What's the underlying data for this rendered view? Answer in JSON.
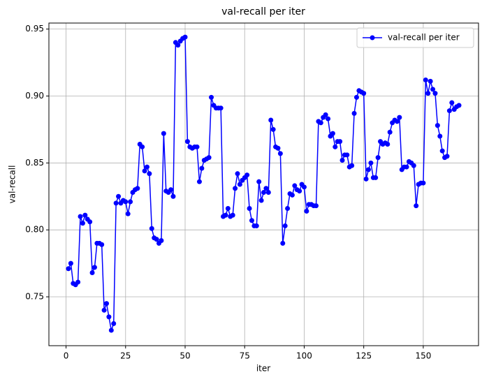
{
  "chart_data": {
    "type": "line",
    "title": "val-recall per iter",
    "x_label": "iter",
    "y_label": "val-recall",
    "x": [
      1,
      2,
      3,
      4,
      5,
      6,
      7,
      8,
      9,
      10,
      11,
      12,
      13,
      14,
      15,
      16,
      17,
      18,
      19,
      20,
      21,
      22,
      23,
      24,
      25,
      26,
      27,
      28,
      29,
      30,
      31,
      32,
      33,
      34,
      35,
      36,
      37,
      38,
      39,
      40,
      41,
      42,
      43,
      44,
      45,
      46,
      47,
      48,
      49,
      50,
      51,
      52,
      53,
      54,
      55,
      56,
      57,
      58,
      59,
      60,
      61,
      62,
      63,
      64,
      65,
      66,
      67,
      68,
      69,
      70,
      71,
      72,
      73,
      74,
      75,
      76,
      77,
      78,
      79,
      80,
      81,
      82,
      83,
      84,
      85,
      86,
      87,
      88,
      89,
      90,
      91,
      92,
      93,
      94,
      95,
      96,
      97,
      98,
      99,
      100,
      101,
      102,
      103,
      104,
      105,
      106,
      107,
      108,
      109,
      110,
      111,
      112,
      113,
      114,
      115,
      116,
      117,
      118,
      119,
      120,
      121,
      122,
      123,
      124,
      125,
      126,
      127,
      128,
      129,
      130,
      131,
      132,
      133,
      134,
      135,
      136,
      137,
      138,
      139,
      140,
      141,
      142,
      143,
      144,
      145,
      146,
      147,
      148,
      149,
      150,
      151,
      152,
      153,
      154,
      155,
      156,
      157,
      158,
      159,
      160,
      161,
      162,
      163,
      164,
      165
    ],
    "series": [
      {
        "name": "val-recall per iter",
        "color": "#0000ff",
        "marker": "circle",
        "values": [
          0.771,
          0.775,
          0.76,
          0.759,
          0.761,
          0.81,
          0.805,
          0.811,
          0.808,
          0.806,
          0.768,
          0.772,
          0.79,
          0.79,
          0.789,
          0.74,
          0.745,
          0.735,
          0.725,
          0.73,
          0.82,
          0.825,
          0.82,
          0.822,
          0.821,
          0.812,
          0.821,
          0.828,
          0.83,
          0.831,
          0.864,
          0.862,
          0.844,
          0.847,
          0.842,
          0.801,
          0.794,
          0.793,
          0.79,
          0.792,
          0.872,
          0.829,
          0.828,
          0.83,
          0.825,
          0.94,
          0.938,
          0.941,
          0.943,
          0.944,
          0.866,
          0.862,
          0.861,
          0.862,
          0.862,
          0.836,
          0.846,
          0.852,
          0.853,
          0.854,
          0.899,
          0.893,
          0.891,
          0.891,
          0.891,
          0.81,
          0.811,
          0.816,
          0.81,
          0.811,
          0.831,
          0.842,
          0.834,
          0.837,
          0.839,
          0.841,
          0.816,
          0.807,
          0.803,
          0.803,
          0.836,
          0.822,
          0.828,
          0.831,
          0.828,
          0.882,
          0.875,
          0.862,
          0.861,
          0.857,
          0.79,
          0.803,
          0.816,
          0.827,
          0.826,
          0.833,
          0.83,
          0.829,
          0.834,
          0.832,
          0.814,
          0.819,
          0.819,
          0.818,
          0.818,
          0.881,
          0.88,
          0.884,
          0.886,
          0.883,
          0.87,
          0.872,
          0.862,
          0.866,
          0.866,
          0.852,
          0.856,
          0.856,
          0.847,
          0.848,
          0.887,
          0.899,
          0.904,
          0.903,
          0.902,
          0.838,
          0.845,
          0.85,
          0.839,
          0.839,
          0.854,
          0.866,
          0.864,
          0.865,
          0.864,
          0.873,
          0.88,
          0.882,
          0.881,
          0.884,
          0.845,
          0.847,
          0.847,
          0.851,
          0.85,
          0.848,
          0.818,
          0.834,
          0.835,
          0.835,
          0.912,
          0.902,
          0.911,
          0.905,
          0.902,
          0.878,
          0.87,
          0.859,
          0.854,
          0.855,
          0.889,
          0.895,
          0.89,
          0.892,
          0.893
        ]
      }
    ],
    "xlim": [
      -7.2,
      173.2
    ],
    "ylim": [
      0.7135,
      0.9545
    ],
    "xticks": [
      0,
      25,
      50,
      75,
      100,
      125,
      150
    ],
    "yticks": [
      0.75,
      {
        "value": 0.8,
        "label": "0.80"
      },
      0.85,
      {
        "value": 0.9,
        "label": "0.90"
      },
      0.95
    ],
    "grid": true,
    "legend": "upper right"
  }
}
